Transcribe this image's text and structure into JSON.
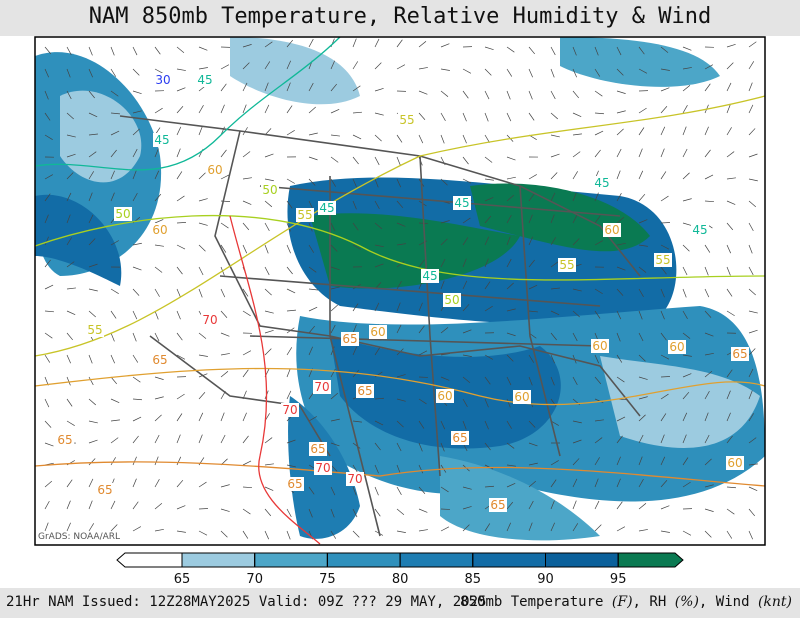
{
  "header": {
    "title": "NAM 850mb Temperature, Relative Humidity & Wind"
  },
  "map": {
    "credit": "GrADS: NOAA/ARL",
    "isotherms": [
      {
        "value": 30,
        "color": "#2a3cf0"
      },
      {
        "value": 45,
        "color": "#10b898"
      },
      {
        "value": 50,
        "color": "#a8d020"
      },
      {
        "value": 55,
        "color": "#c8c428"
      },
      {
        "value": 60,
        "color": "#e0a030"
      },
      {
        "value": 65,
        "color": "#e08a30"
      },
      {
        "value": 70,
        "color": "#e83838"
      }
    ],
    "labels": [
      30,
      45,
      45,
      50,
      60,
      60,
      50,
      55,
      45,
      45,
      45,
      50,
      55,
      45,
      45,
      55,
      60,
      55,
      60,
      65,
      60,
      60,
      65,
      70,
      65,
      60,
      60,
      70,
      65,
      70,
      70,
      65,
      60,
      65,
      65,
      65,
      65,
      55,
      65,
      70
    ]
  },
  "colorbar": {
    "levels": [
      65,
      70,
      75,
      80,
      85,
      90,
      95
    ],
    "colors": [
      "#ffffff",
      "#9ccbe0",
      "#4ca6c8",
      "#2f90bc",
      "#1e7db2",
      "#126ca6",
      "#0a609b",
      "#0a7a52"
    ]
  },
  "footer": {
    "issued": "21Hr NAM Issued: 12Z28MAY2025 Valid: 09Z ??? 29 MAY, 2025",
    "field": "850mb Temperature",
    "t_unit": "(F)",
    "rh": ", RH",
    "rh_unit": "(%)",
    "wind": ", Wind",
    "wind_unit": "(knt)"
  }
}
